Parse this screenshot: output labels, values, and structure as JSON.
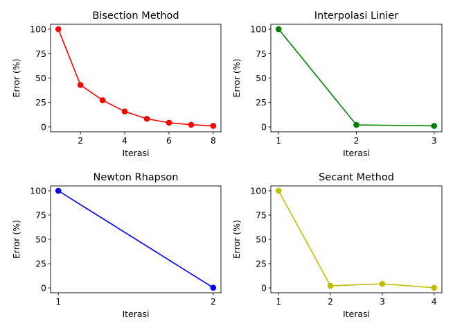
{
  "chart_data": [
    {
      "type": "line",
      "title": "Bisection Method",
      "xlabel": "Iterasi",
      "ylabel": "Error (%)",
      "x": [
        1,
        2,
        3,
        4,
        5,
        6,
        7,
        8
      ],
      "series": [
        {
          "values": [
            100.0,
            42.9,
            27.3,
            15.8,
            8.3,
            4.3,
            2.2,
            1.1
          ]
        }
      ],
      "color": "#ff0000",
      "xticks": [
        "2",
        "4",
        "6",
        "8"
      ],
      "yticks": [
        "0",
        "25",
        "50",
        "75",
        "100"
      ],
      "xlim": [
        0.65,
        8.35
      ],
      "ylim": [
        -5,
        105
      ],
      "grid": false,
      "marker": "circle"
    },
    {
      "type": "line",
      "title": "Interpolasi Linier",
      "xlabel": "Iterasi",
      "ylabel": "Error (%)",
      "x": [
        1,
        2,
        3
      ],
      "series": [
        {
          "values": [
            100.0,
            2.1,
            1.1
          ]
        }
      ],
      "color": "#008000",
      "xticks": [
        "1",
        "2",
        "3"
      ],
      "yticks": [
        "0",
        "25",
        "50",
        "75",
        "100"
      ],
      "xlim": [
        0.9,
        3.1
      ],
      "ylim": [
        -5,
        105
      ],
      "grid": false,
      "marker": "circle"
    },
    {
      "type": "line",
      "title": "Newton Rhapson",
      "xlabel": "Iterasi",
      "ylabel": "Error (%)",
      "x": [
        1,
        2
      ],
      "series": [
        {
          "values": [
            100.0,
            0.2
          ]
        }
      ],
      "color": "#0000ff",
      "xticks": [
        "1",
        "2"
      ],
      "yticks": [
        "0",
        "25",
        "50",
        "75",
        "100"
      ],
      "xlim": [
        0.95,
        2.05
      ],
      "ylim": [
        -5,
        105
      ],
      "grid": false,
      "marker": "circle"
    },
    {
      "type": "line",
      "title": "Secant Method",
      "xlabel": "Iterasi",
      "ylabel": "Error (%)",
      "x": [
        1,
        2,
        3,
        4
      ],
      "series": [
        {
          "values": [
            100.0,
            2.1,
            4.2,
            0.1
          ]
        }
      ],
      "color": "#bfbf00",
      "xticks": [
        "1",
        "2",
        "3",
        "4"
      ],
      "yticks": [
        "0",
        "25",
        "50",
        "75",
        "100"
      ],
      "xlim": [
        0.85,
        4.15
      ],
      "ylim": [
        -5,
        105
      ],
      "grid": false,
      "marker": "circle"
    }
  ]
}
